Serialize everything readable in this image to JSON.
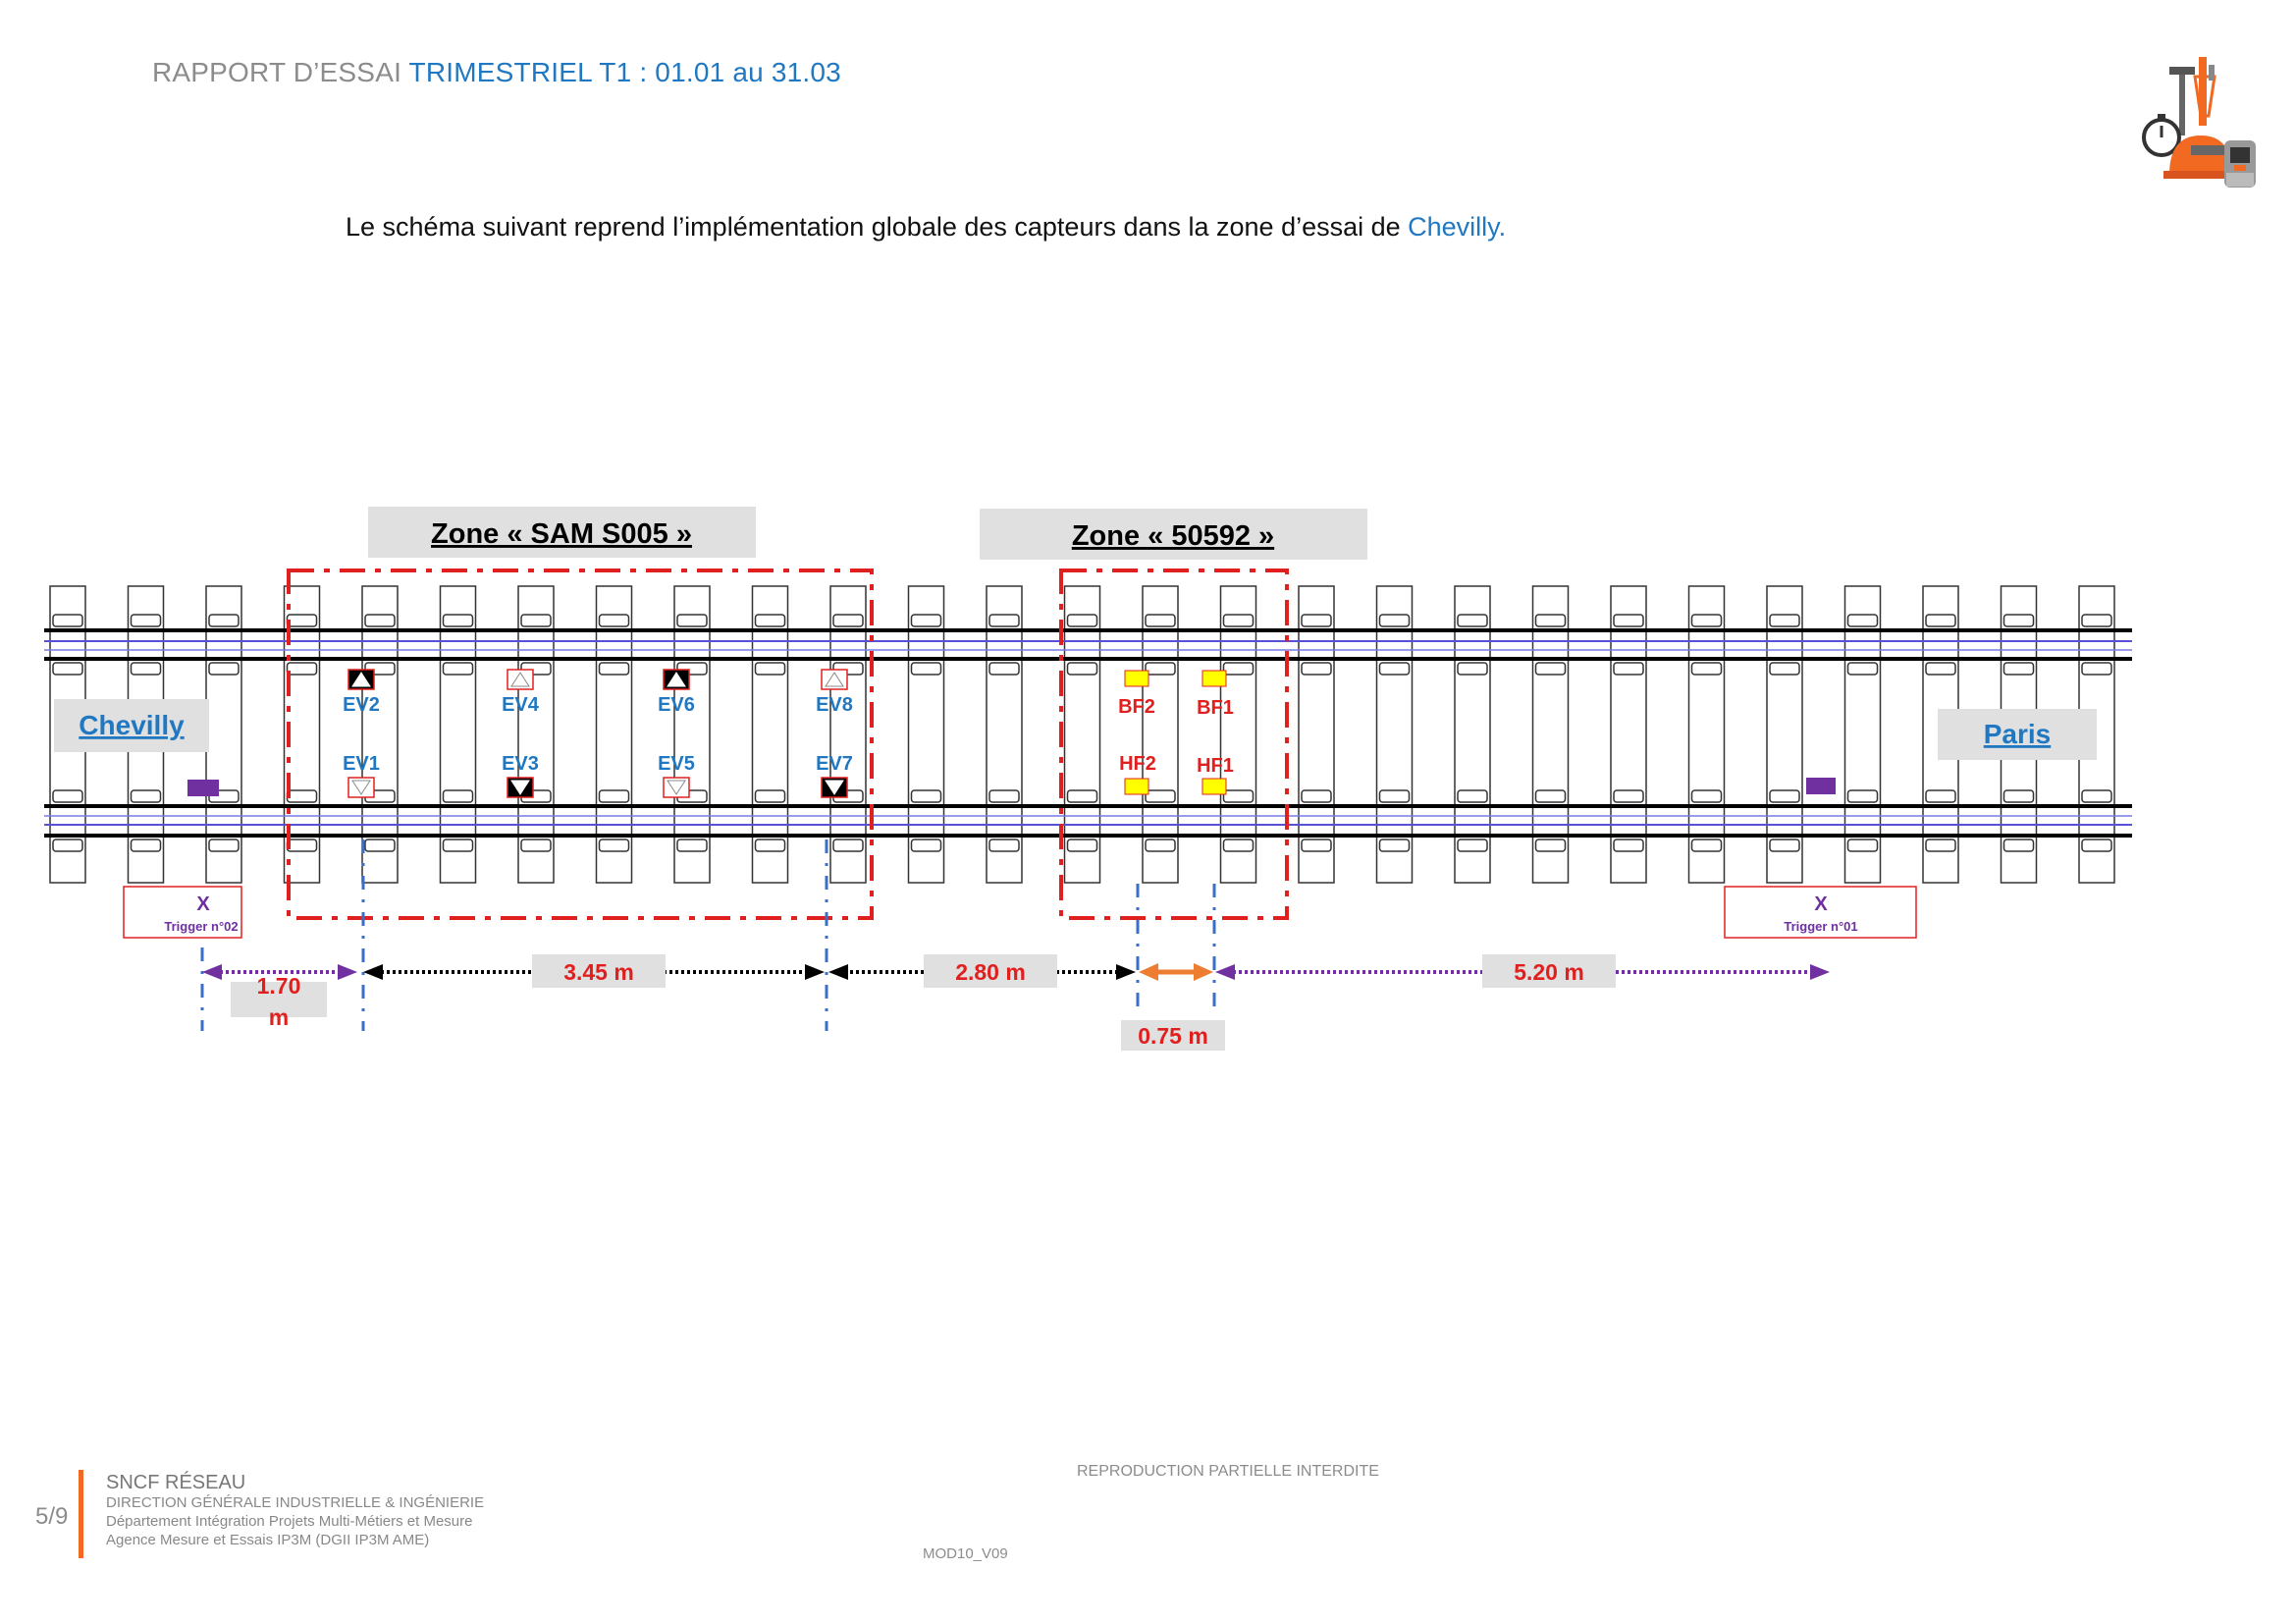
{
  "header": {
    "prefix": "RAPPORT D’ESSAI ",
    "title": "TRIMESTRIEL T1 : 01.01 au 31.03"
  },
  "intro": {
    "text": "Le schéma suivant reprend l’implémentation globale des capteurs dans la zone d’essai de ",
    "place": "Chevilly."
  },
  "logo_icon": "railway-tools-logo",
  "diagram": {
    "zone_sam": "Zone « SAM S005 »",
    "zone_50592": "Zone « 50592 »",
    "station_left": "Chevilly",
    "station_right": "Paris",
    "ev_top": [
      "EV2",
      "EV4",
      "EV6",
      "EV8"
    ],
    "ev_bottom": [
      "EV1",
      "EV3",
      "EV5",
      "EV7"
    ],
    "bf": [
      "BF2",
      "BF1"
    ],
    "hf": [
      "HF2",
      "HF1"
    ],
    "trigger_left_x": "X",
    "trigger_left_label": "Trigger n°02",
    "trigger_right_x": "X",
    "trigger_right_label": "Trigger n°01",
    "dist_1": [
      "1.70",
      "m"
    ],
    "dist_2": "3.45 m",
    "dist_3": "2.80 m",
    "dist_4": "0.75 m",
    "dist_5": "5.20 m",
    "colors": {
      "zone_border": "#e0201f",
      "sensor_blue": "#1f78c1",
      "sensor_red": "#e0201f",
      "yellow": "#ffff00",
      "purple": "#7030a0",
      "orange": "#ed7d31",
      "gray_box": "#e0e0e0"
    }
  },
  "footer": {
    "page": "5/9",
    "org": "SNCF RÉSEAU",
    "line1": "DIRECTION GÉNÉRALE INDUSTRIELLE & INGÉNIERIE",
    "line2": "Département Intégration Projets Multi-Métiers et Mesure",
    "line3": "Agence Mesure et Essais IP3M (DGII IP3M AME)",
    "repro": "REPRODUCTION PARTIELLE INTERDITE",
    "mod": "MOD10_V09"
  }
}
